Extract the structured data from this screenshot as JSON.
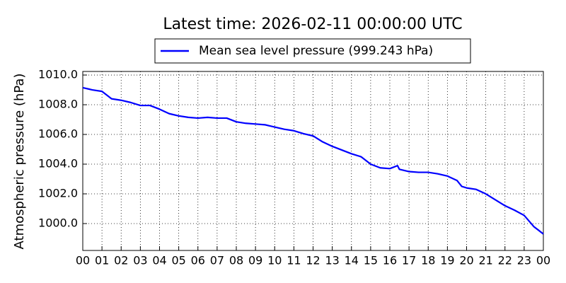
{
  "chart_data": {
    "type": "line",
    "title": "Latest time: 2026-02-11 00:00:00 UTC",
    "y_label": "Atmospheric pressure (hPa)",
    "x": [
      0,
      0.5,
      1,
      1.5,
      2,
      2.5,
      3,
      3.5,
      4,
      4.5,
      5,
      5.5,
      6,
      6.5,
      7,
      7.5,
      8,
      8.5,
      9,
      9.5,
      10,
      10.5,
      11,
      11.5,
      12,
      12.5,
      13,
      13.5,
      14,
      14.5,
      15,
      15.5,
      16,
      16.4,
      16.5,
      17,
      17.5,
      18,
      18.5,
      19,
      19.5,
      19.75,
      20,
      20.5,
      21,
      21.5,
      22,
      22.5,
      23,
      23.5,
      24
    ],
    "series": [
      {
        "name": "Mean sea level pressure (999.243 hPa)",
        "color": "#0000ff",
        "values": [
          1009.15,
          1009.0,
          1008.9,
          1008.4,
          1008.3,
          1008.15,
          1007.95,
          1007.95,
          1007.7,
          1007.4,
          1007.25,
          1007.15,
          1007.1,
          1007.15,
          1007.1,
          1007.1,
          1006.85,
          1006.75,
          1006.7,
          1006.65,
          1006.5,
          1006.35,
          1006.25,
          1006.05,
          1005.9,
          1005.5,
          1005.2,
          1004.95,
          1004.7,
          1004.5,
          1004.0,
          1003.75,
          1003.7,
          1003.9,
          1003.65,
          1003.5,
          1003.45,
          1003.45,
          1003.35,
          1003.2,
          1002.9,
          1002.5,
          1002.4,
          1002.3,
          1002.0,
          1001.6,
          1001.2,
          1000.9,
          1000.55,
          999.8,
          999.3
        ]
      }
    ],
    "xlim": [
      0,
      24
    ],
    "xticks": [
      {
        "value": 0,
        "label": "00"
      },
      {
        "value": 1,
        "label": "01"
      },
      {
        "value": 2,
        "label": "02"
      },
      {
        "value": 3,
        "label": "03"
      },
      {
        "value": 4,
        "label": "04"
      },
      {
        "value": 5,
        "label": "05"
      },
      {
        "value": 6,
        "label": "06"
      },
      {
        "value": 7,
        "label": "07"
      },
      {
        "value": 8,
        "label": "08"
      },
      {
        "value": 9,
        "label": "09"
      },
      {
        "value": 10,
        "label": "10"
      },
      {
        "value": 11,
        "label": "11"
      },
      {
        "value": 12,
        "label": "12"
      },
      {
        "value": 13,
        "label": "13"
      },
      {
        "value": 14,
        "label": "14"
      },
      {
        "value": 15,
        "label": "15"
      },
      {
        "value": 16,
        "label": "16"
      },
      {
        "value": 17,
        "label": "17"
      },
      {
        "value": 18,
        "label": "18"
      },
      {
        "value": 19,
        "label": "19"
      },
      {
        "value": 20,
        "label": "20"
      },
      {
        "value": 21,
        "label": "21"
      },
      {
        "value": 22,
        "label": "22"
      },
      {
        "value": 23,
        "label": "23"
      },
      {
        "value": 24,
        "label": "00"
      }
    ],
    "ylim": [
      998.19,
      1010.24
    ],
    "yticks": [
      {
        "value": 1000,
        "label": "1000.0"
      },
      {
        "value": 1002,
        "label": "1002.0"
      },
      {
        "value": 1004,
        "label": "1004.0"
      },
      {
        "value": 1006,
        "label": "1006.0"
      },
      {
        "value": 1008,
        "label": "1008.0"
      },
      {
        "value": 1010,
        "label": "1010.0"
      }
    ],
    "grid": true,
    "legend": "top"
  }
}
